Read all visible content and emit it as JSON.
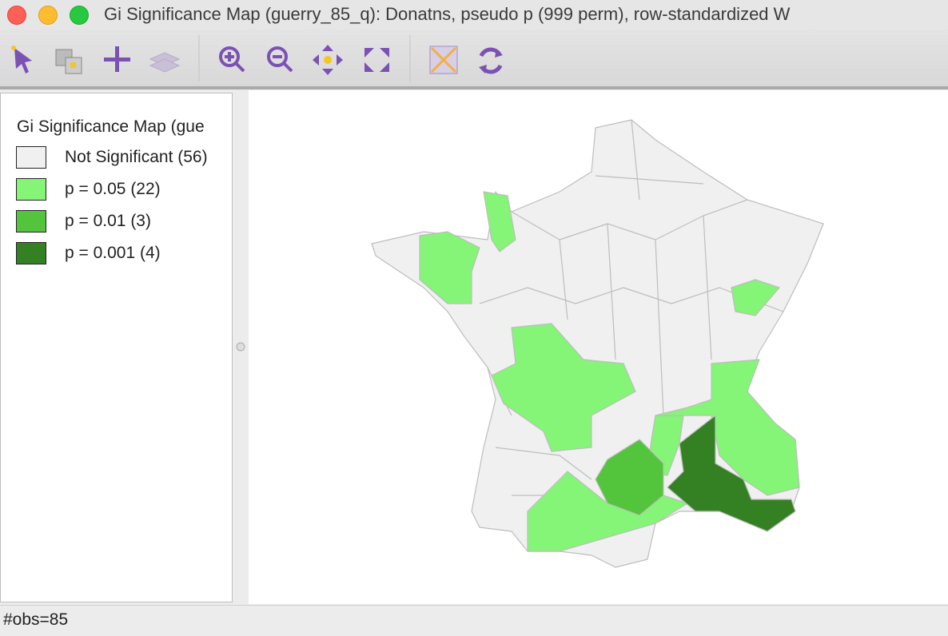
{
  "window": {
    "title": "Gi Significance Map (guerry_85_q): Donatns, pseudo p (999 perm), row-standardized W"
  },
  "legend": {
    "title": "Gi Significance Map (gue",
    "items": [
      {
        "label": "Not Significant (56)",
        "color": "#f0f0f0"
      },
      {
        "label": "p = 0.05 (22)",
        "color": "#84f576"
      },
      {
        "label": "p = 0.01 (3)",
        "color": "#53c53c"
      },
      {
        "label": "p = 0.001 (4)",
        "color": "#348124"
      }
    ]
  },
  "status": "#obs=85"
}
